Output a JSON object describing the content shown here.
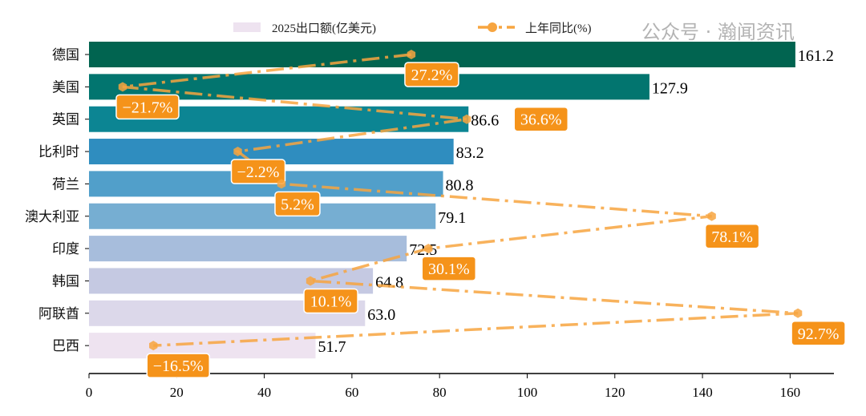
{
  "chart_data": {
    "type": "bar",
    "orientation": "horizontal",
    "categories": [
      "德国",
      "美国",
      "英国",
      "比利时",
      "荷兰",
      "澳大利亚",
      "印度",
      "韩国",
      "阿联酋",
      "巴西"
    ],
    "series": [
      {
        "name": "2025出口额(亿美元)",
        "type": "bar",
        "values": [
          161.2,
          127.9,
          86.6,
          83.2,
          80.8,
          79.1,
          72.5,
          64.8,
          63.0,
          51.7
        ],
        "colors": [
          "#016450",
          "#02756f",
          "#0c8593",
          "#2f8dbf",
          "#519fca",
          "#76aed2",
          "#a7bddc",
          "#c5c9e2",
          "#dcd8ea",
          "#eee3f0"
        ]
      },
      {
        "name": "上年同比(%)",
        "type": "line",
        "values": [
          27.2,
          -21.7,
          36.6,
          -2.2,
          5.2,
          78.1,
          30.1,
          10.1,
          92.7,
          -16.5
        ],
        "color": "#f7a540",
        "label_color": "#f5931a",
        "xlim": [
          -27.4,
          98.8
        ]
      }
    ],
    "value_labels": [
      "161.2",
      "127.9",
      "86.6",
      "83.2",
      "80.8",
      "79.1",
      "72.5",
      "64.8",
      "63.0",
      "51.7"
    ],
    "line_labels": [
      "27.2%",
      "−21.7%",
      "36.6%",
      "−2.2%",
      "5.2%",
      "78.1%",
      "30.1%",
      "10.1%",
      "92.7%",
      "−16.5%"
    ],
    "xlim": [
      0,
      170
    ],
    "xticks": [
      0,
      20,
      40,
      60,
      80,
      100,
      120,
      140,
      160
    ],
    "grid": false,
    "legend_position": "top"
  },
  "watermark": "公众号 · 瀚闻资讯"
}
